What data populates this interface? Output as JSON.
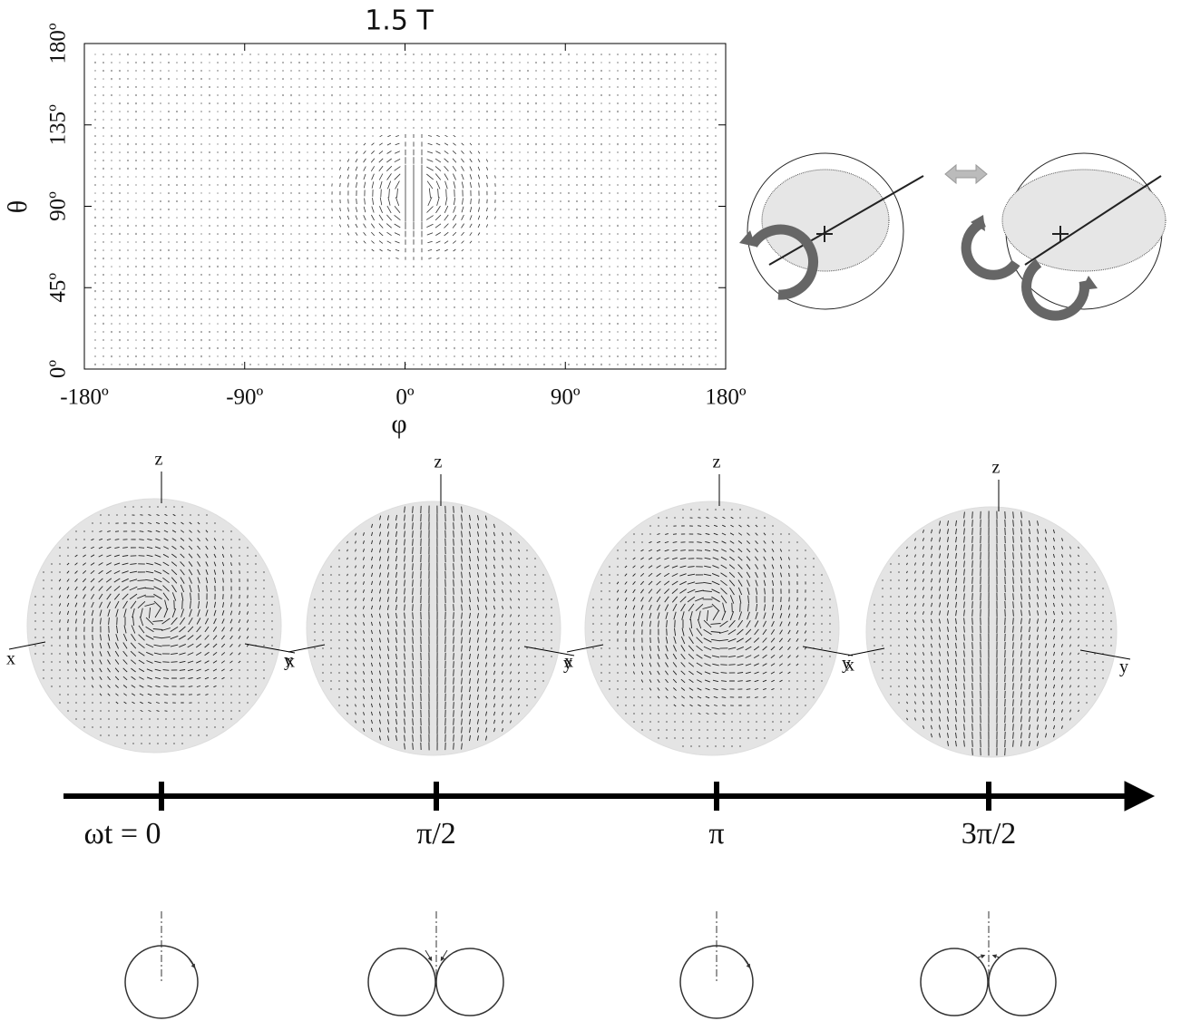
{
  "top_plot": {
    "title": "1.5 T",
    "x_label": "φ",
    "y_label": "θ",
    "xlim": [
      -180,
      180
    ],
    "ylim": [
      0,
      180
    ],
    "xticks": [
      {
        "value": -180,
        "label": "-180º"
      },
      {
        "value": -90,
        "label": "-90º"
      },
      {
        "value": 0,
        "label": "0º"
      },
      {
        "value": 90,
        "label": "90º"
      },
      {
        "value": 180,
        "label": "180º"
      }
    ],
    "yticks": [
      {
        "value": 0,
        "label": "0º"
      },
      {
        "value": 45,
        "label": "45º"
      },
      {
        "value": 90,
        "label": "90º"
      },
      {
        "value": 135,
        "label": "135º"
      },
      {
        "value": 180,
        "label": "180º"
      }
    ]
  },
  "spheres": [
    {
      "z": "z",
      "x": "x",
      "y": "y"
    },
    {
      "z": "z",
      "x": "x",
      "y": "y"
    },
    {
      "z": "z",
      "x": "x",
      "y": "y"
    },
    {
      "z": "z",
      "x": "x",
      "y": "y"
    }
  ],
  "timeline": {
    "labels": [
      "ωt = 0",
      "π/2",
      "π",
      "3π/2"
    ]
  }
}
